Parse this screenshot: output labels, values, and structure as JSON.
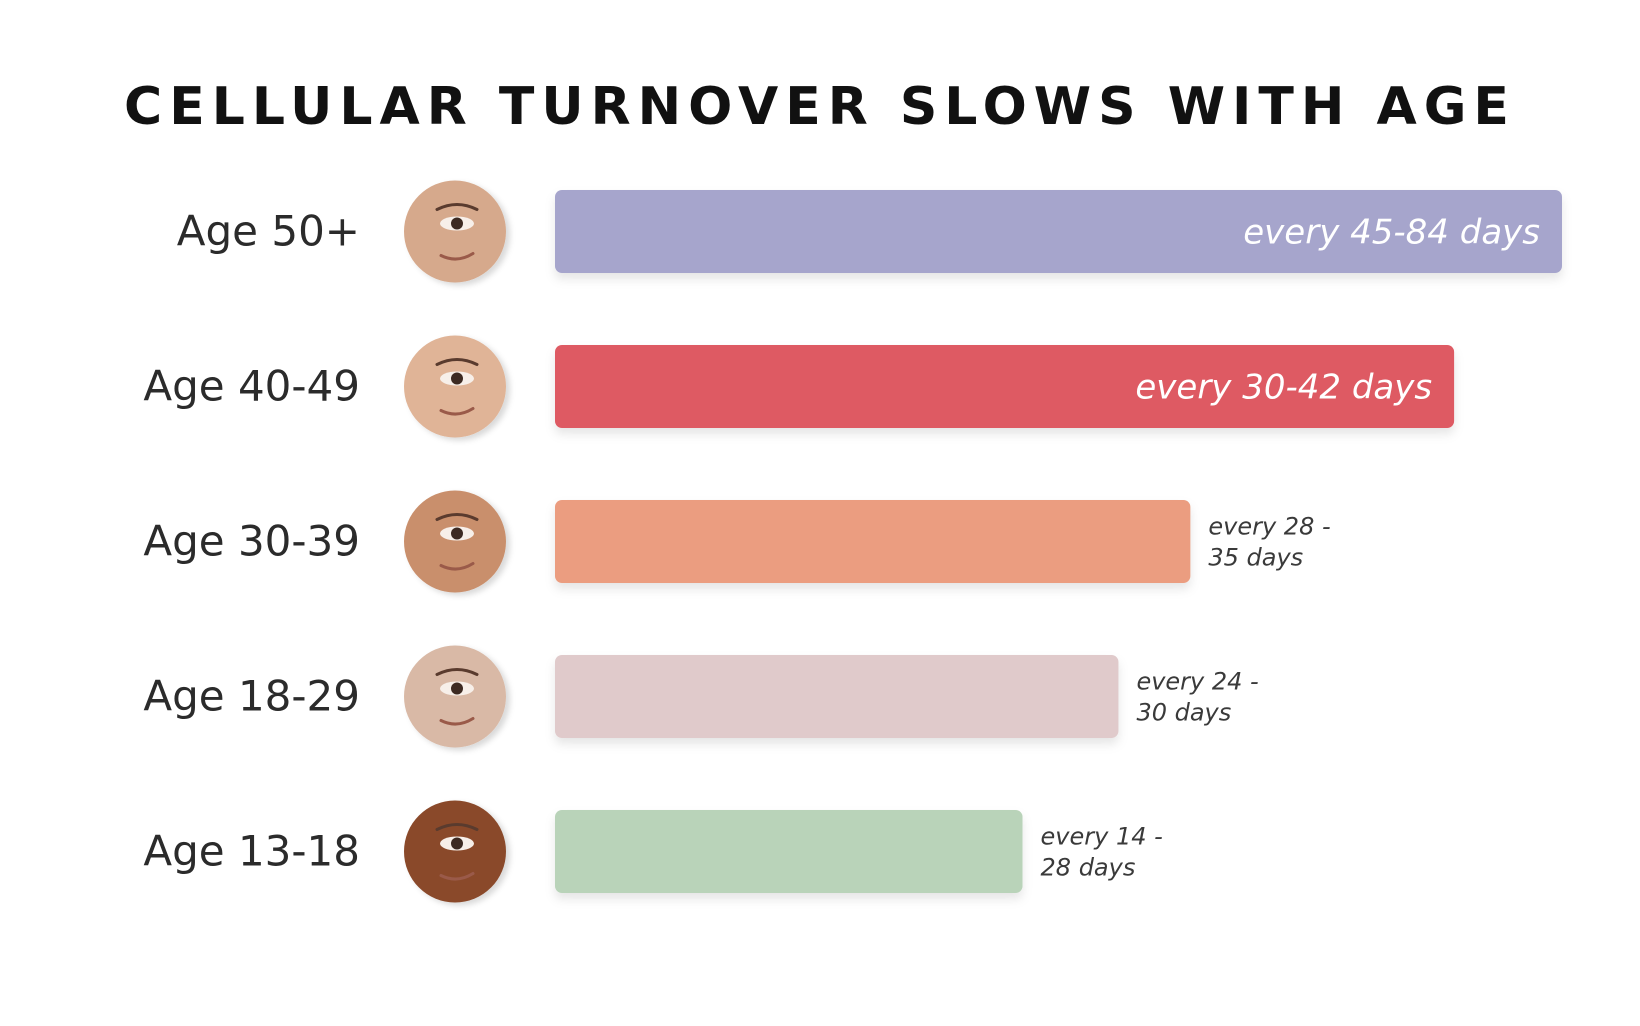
{
  "chart_data": {
    "type": "bar",
    "orientation": "horizontal",
    "title": "CELLULAR TURNOVER SLOWS WITH AGE",
    "xlabel": "",
    "ylabel": "",
    "grid": false,
    "legend": "none",
    "unit": "days",
    "xlim": [
      0,
      84
    ],
    "categories": [
      "Age 50+",
      "Age 40-49",
      "Age 30-39",
      "Age 18-29",
      "Age 13-18"
    ],
    "series": [
      {
        "ranges": [
          [
            45,
            84
          ],
          [
            30,
            42
          ],
          [
            28,
            35
          ],
          [
            24,
            30
          ],
          [
            14,
            28
          ]
        ],
        "values": [
          84,
          75,
          53,
          47,
          39
        ],
        "labels": [
          [
            "every 45-84 days"
          ],
          [
            "every 30-42 days"
          ],
          [
            "every 28 -",
            "35 days"
          ],
          [
            "every 24 -",
            "30 days"
          ],
          [
            "every 14 -",
            "28 days"
          ]
        ],
        "label_position": [
          "inside",
          "inside",
          "outside",
          "outside",
          "outside"
        ],
        "colors": [
          "#a6a5cc",
          "#de5a63",
          "#eb9d80",
          "#e0cacb",
          "#b9d3b9"
        ]
      }
    ],
    "avatar_icons": [
      "face-icon-mature",
      "face-icon-middle-age",
      "face-icon-adult",
      "face-icon-young-adult",
      "face-icon-teen"
    ],
    "avatar_skin_colors": [
      "#d6a98c",
      "#e0b497",
      "#c98f6c",
      "#d9b9a6",
      "#8a4a2c"
    ]
  }
}
